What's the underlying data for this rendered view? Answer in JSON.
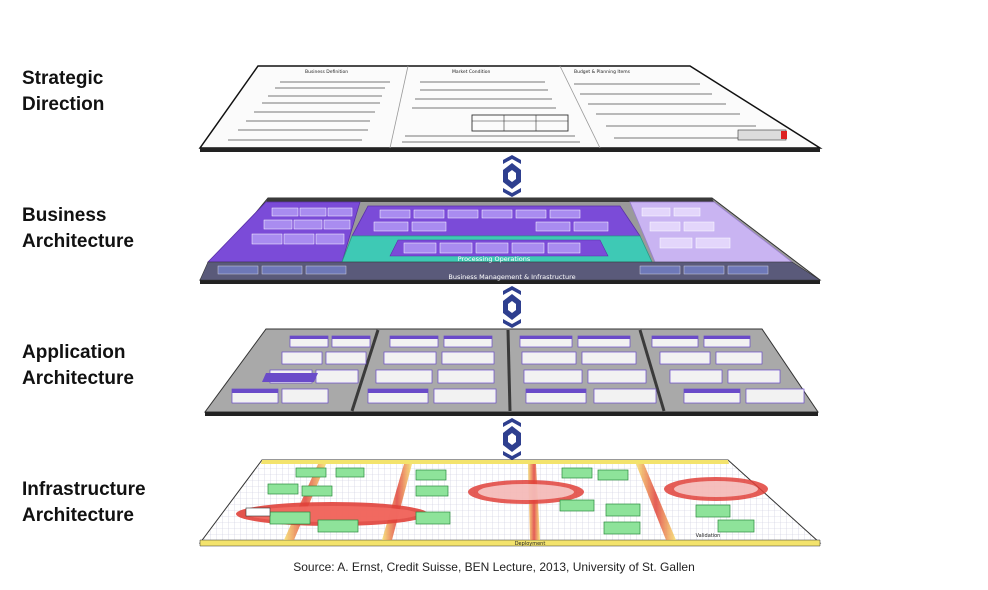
{
  "layers": [
    {
      "id": "strategic",
      "label": "Strategic\nDirection",
      "headings": [
        "Business Definition",
        "Market Condition",
        "Budget & Planning Items"
      ]
    },
    {
      "id": "business",
      "label": "Business\nArchitecture",
      "bands": [
        "Processing Operations",
        "Business Management & Infrastructure"
      ]
    },
    {
      "id": "application",
      "label": "Application\nArchitecture"
    },
    {
      "id": "infrastructure",
      "label": "Infrastructure\nArchitecture",
      "bands": [
        "Deployment",
        "Validation"
      ]
    }
  ],
  "colors": {
    "connector": "#2e3f8f",
    "purple": "#7b4bd8",
    "lilac": "#c9b4f2",
    "teal": "#3ec9b5",
    "gray": "#8d8d8d",
    "dark": "#3a3a3a",
    "yellow": "#f3e36c",
    "red": "#e0413a",
    "green": "#8ee39a"
  },
  "connector_icon": "double-chevron-link-icon",
  "source": "Source: A. Ernst, Credit Suisse, BEN Lecture, 2013, University of St. Gallen"
}
